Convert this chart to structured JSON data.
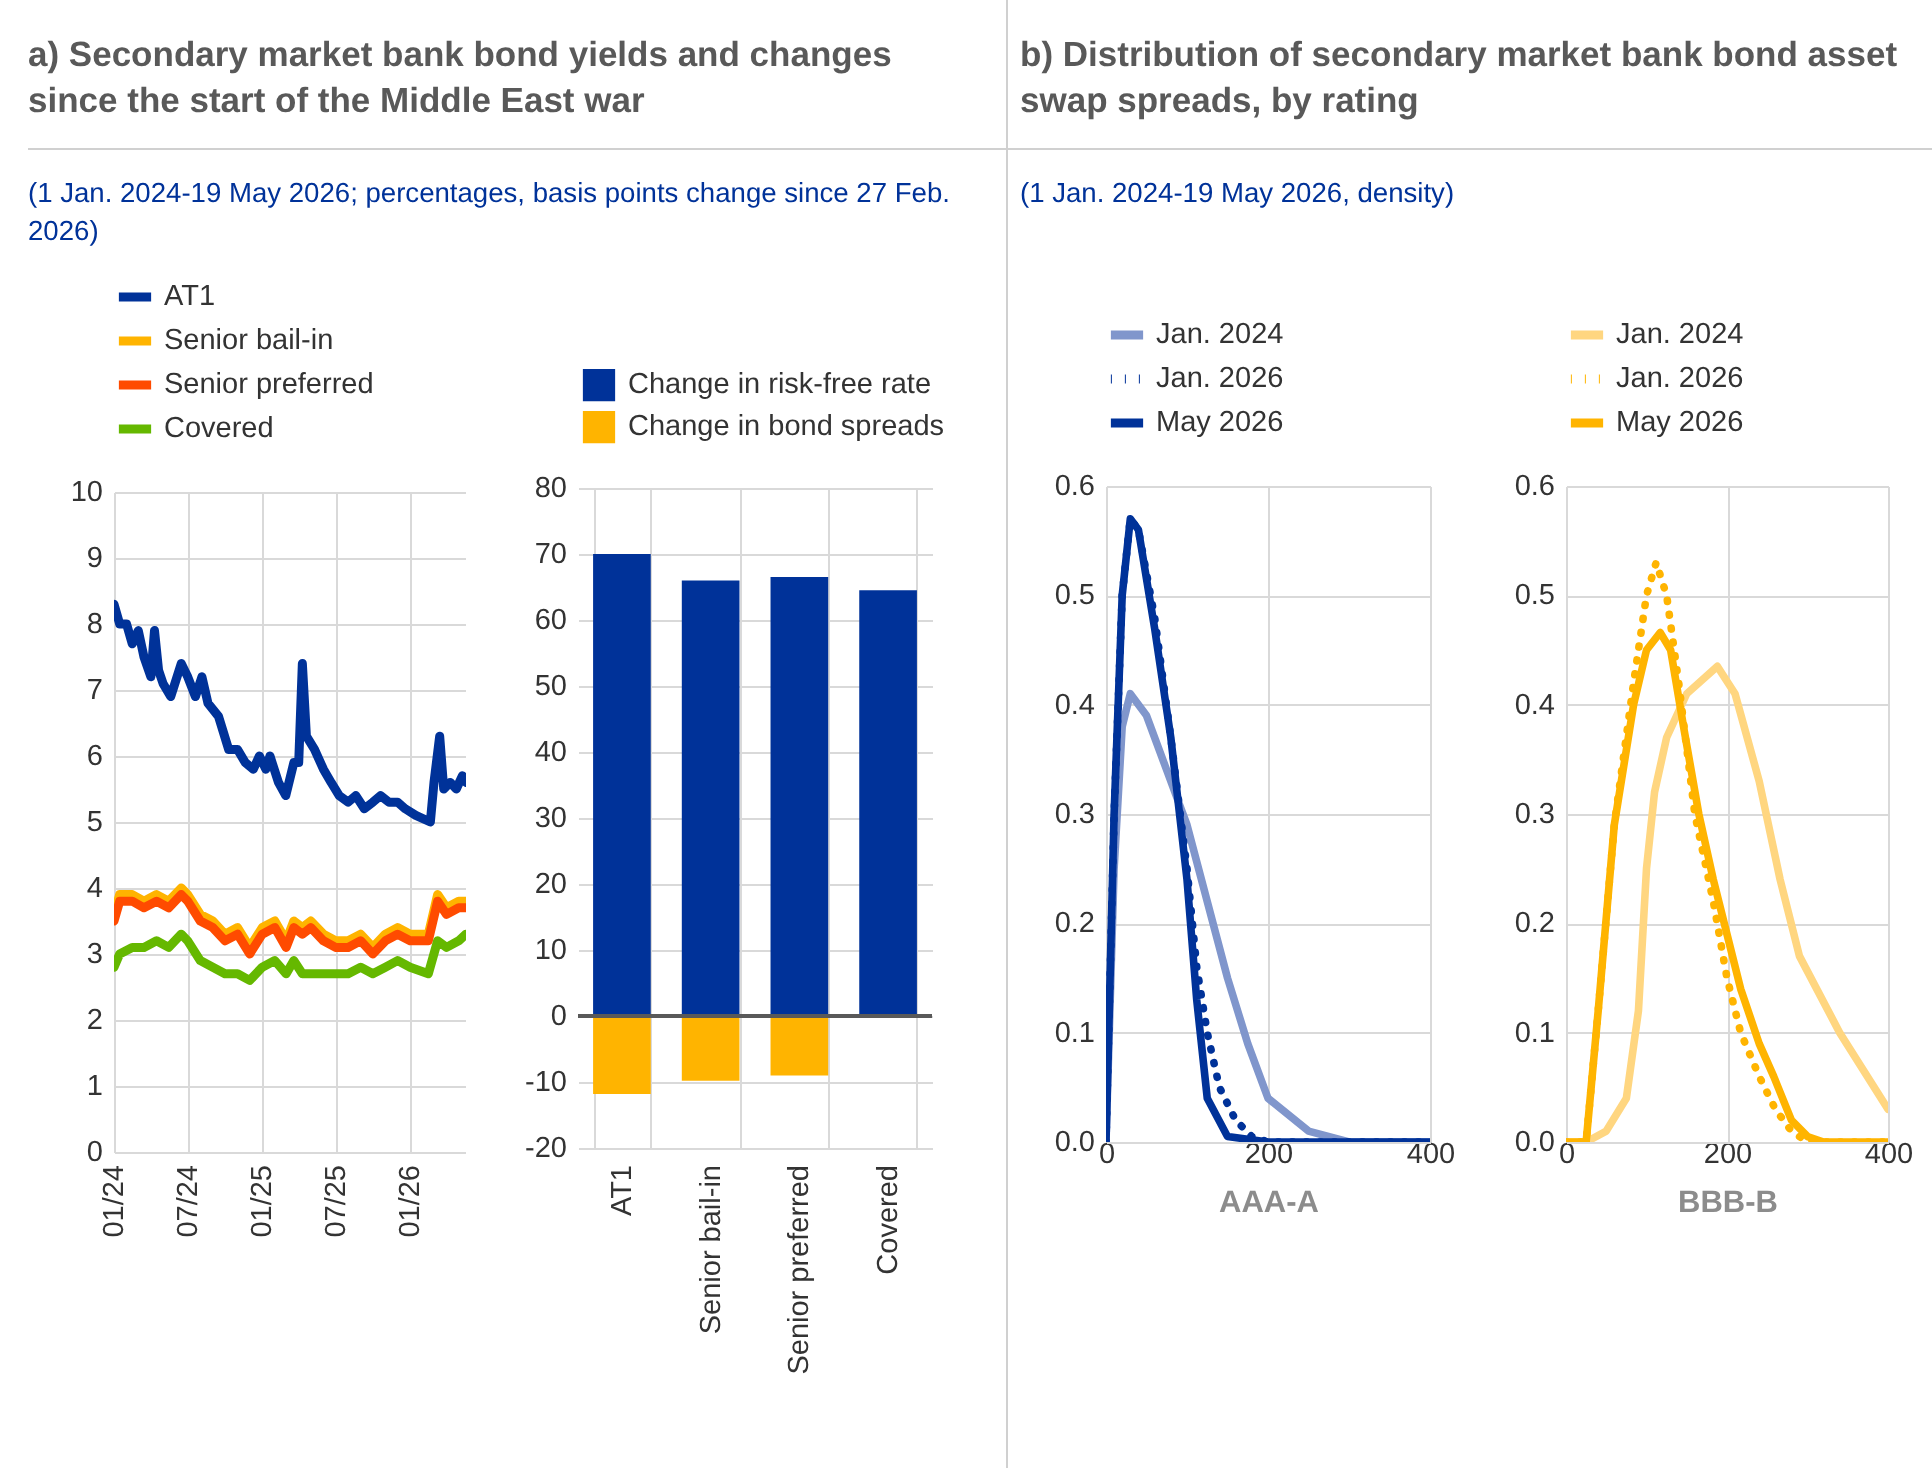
{
  "chart_data": [
    {
      "type": "line",
      "title": "a) Secondary market bank bond yields and changes since the start of the Middle East war",
      "subtitle": "(1 Jan. 2024-19 May 2026; percentages, basis points change since 27 Feb. 2026)",
      "xlim": [
        "2024-01-01",
        "2026-05-19"
      ],
      "xticks": [
        {
          "value": "2024-01-01",
          "label": "01/24"
        },
        {
          "value": "2024-07-01",
          "label": "07/24"
        },
        {
          "value": "2025-01-01",
          "label": "01/25"
        },
        {
          "value": "2025-07-01",
          "label": "07/25"
        },
        {
          "value": "2026-01-01",
          "label": "01/26"
        }
      ],
      "ylim": [
        0,
        10
      ],
      "yticks": [
        0,
        1,
        2,
        3,
        4,
        5,
        6,
        7,
        8,
        9,
        10
      ],
      "grid": true,
      "legend": "top",
      "series": [
        {
          "name": "AT1",
          "color": "#003299",
          "x": [
            "2024-01-01",
            "2024-01-15",
            "2024-02-01",
            "2024-02-15",
            "2024-03-01",
            "2024-03-15",
            "2024-04-01",
            "2024-04-10",
            "2024-04-20",
            "2024-05-01",
            "2024-05-20",
            "2024-06-15",
            "2024-07-01",
            "2024-07-20",
            "2024-08-05",
            "2024-08-20",
            "2024-09-15",
            "2024-10-10",
            "2024-11-01",
            "2024-11-20",
            "2024-12-10",
            "2024-12-25",
            "2025-01-10",
            "2025-01-20",
            "2025-02-10",
            "2025-02-28",
            "2025-03-20",
            "2025-04-01",
            "2025-04-10",
            "2025-04-20",
            "2025-05-10",
            "2025-06-01",
            "2025-06-20",
            "2025-07-10",
            "2025-08-01",
            "2025-08-20",
            "2025-09-10",
            "2025-10-01",
            "2025-10-20",
            "2025-11-10",
            "2025-12-01",
            "2025-12-20",
            "2026-01-15",
            "2026-02-20",
            "2026-03-01",
            "2026-03-15",
            "2026-03-25",
            "2026-04-10",
            "2026-04-25",
            "2026-05-10",
            "2026-05-19"
          ],
          "values": [
            8.3,
            8.0,
            8.0,
            7.7,
            7.9,
            7.5,
            7.2,
            7.9,
            7.3,
            7.1,
            6.9,
            7.4,
            7.2,
            6.9,
            7.2,
            6.8,
            6.6,
            6.1,
            6.1,
            5.9,
            5.8,
            6.0,
            5.8,
            6.0,
            5.6,
            5.4,
            5.9,
            5.9,
            7.4,
            6.3,
            6.1,
            5.8,
            5.6,
            5.4,
            5.3,
            5.4,
            5.2,
            5.3,
            5.4,
            5.3,
            5.3,
            5.2,
            5.1,
            5.0,
            5.6,
            6.3,
            5.5,
            5.6,
            5.5,
            5.7,
            5.6
          ]
        },
        {
          "name": "Senior bail-in",
          "color": "#ffb400",
          "x": [
            "2024-01-01",
            "2024-01-15",
            "2024-02-15",
            "2024-03-15",
            "2024-04-15",
            "2024-05-15",
            "2024-06-15",
            "2024-07-01",
            "2024-08-01",
            "2024-09-01",
            "2024-10-01",
            "2024-11-01",
            "2024-12-01",
            "2025-01-01",
            "2025-02-01",
            "2025-03-01",
            "2025-03-20",
            "2025-04-10",
            "2025-05-01",
            "2025-06-01",
            "2025-07-01",
            "2025-08-01",
            "2025-09-01",
            "2025-10-01",
            "2025-11-01",
            "2025-12-01",
            "2026-01-01",
            "2026-02-15",
            "2026-03-10",
            "2026-04-01",
            "2026-05-01",
            "2026-05-19"
          ],
          "values": [
            3.6,
            3.9,
            3.9,
            3.8,
            3.9,
            3.8,
            4.0,
            3.9,
            3.6,
            3.5,
            3.3,
            3.4,
            3.1,
            3.4,
            3.5,
            3.2,
            3.5,
            3.4,
            3.5,
            3.3,
            3.2,
            3.2,
            3.3,
            3.1,
            3.3,
            3.4,
            3.3,
            3.3,
            3.9,
            3.7,
            3.8,
            3.8
          ]
        },
        {
          "name": "Senior preferred",
          "color": "#ff4b00",
          "x": [
            "2024-01-01",
            "2024-01-15",
            "2024-02-15",
            "2024-03-15",
            "2024-04-15",
            "2024-05-15",
            "2024-06-15",
            "2024-07-01",
            "2024-08-01",
            "2024-09-01",
            "2024-10-01",
            "2024-11-01",
            "2024-12-01",
            "2025-01-01",
            "2025-02-01",
            "2025-03-01",
            "2025-03-20",
            "2025-04-10",
            "2025-05-01",
            "2025-06-01",
            "2025-07-01",
            "2025-08-01",
            "2025-09-01",
            "2025-10-01",
            "2025-11-01",
            "2025-12-01",
            "2026-01-01",
            "2026-02-15",
            "2026-03-10",
            "2026-04-01",
            "2026-05-01",
            "2026-05-19"
          ],
          "values": [
            3.5,
            3.8,
            3.8,
            3.7,
            3.8,
            3.7,
            3.9,
            3.8,
            3.5,
            3.4,
            3.2,
            3.3,
            3.0,
            3.3,
            3.4,
            3.1,
            3.4,
            3.3,
            3.4,
            3.2,
            3.1,
            3.1,
            3.2,
            3.0,
            3.2,
            3.3,
            3.2,
            3.2,
            3.8,
            3.6,
            3.7,
            3.7
          ]
        },
        {
          "name": "Covered",
          "color": "#65b800",
          "x": [
            "2024-01-01",
            "2024-01-15",
            "2024-02-15",
            "2024-03-15",
            "2024-04-15",
            "2024-05-15",
            "2024-06-15",
            "2024-07-01",
            "2024-08-01",
            "2024-09-01",
            "2024-10-01",
            "2024-11-01",
            "2024-12-01",
            "2025-01-01",
            "2025-02-01",
            "2025-03-01",
            "2025-03-20",
            "2025-04-10",
            "2025-05-01",
            "2025-06-01",
            "2025-07-01",
            "2025-08-01",
            "2025-09-01",
            "2025-10-01",
            "2025-11-01",
            "2025-12-01",
            "2026-01-01",
            "2026-02-15",
            "2026-03-10",
            "2026-04-01",
            "2026-05-01",
            "2026-05-19"
          ],
          "values": [
            2.8,
            3.0,
            3.1,
            3.1,
            3.2,
            3.1,
            3.3,
            3.2,
            2.9,
            2.8,
            2.7,
            2.7,
            2.6,
            2.8,
            2.9,
            2.7,
            2.9,
            2.7,
            2.7,
            2.7,
            2.7,
            2.7,
            2.8,
            2.7,
            2.8,
            2.9,
            2.8,
            2.7,
            3.2,
            3.1,
            3.2,
            3.3
          ]
        }
      ]
    },
    {
      "type": "bar",
      "categories": [
        "AT1",
        "Senior bail-in",
        "Senior preferred",
        "Covered"
      ],
      "stacked": true,
      "ylim": [
        -20,
        80
      ],
      "yticks": [
        -20,
        -10,
        0,
        10,
        20,
        30,
        40,
        50,
        60,
        70,
        80
      ],
      "grid": true,
      "legend": "top",
      "ref_lines": [
        {
          "axis": "y",
          "value": 0,
          "color": "#595959"
        }
      ],
      "series": [
        {
          "name": "Change in risk-free rate",
          "color": "#003299",
          "values": [
            70,
            66,
            66.5,
            64.5
          ]
        },
        {
          "name": "Change in bond spreads",
          "color": "#ffb400",
          "values": [
            -11.8,
            -9.8,
            -9,
            null
          ]
        }
      ]
    },
    {
      "type": "line",
      "title": "b) Distribution of secondary market bank bond asset swap spreads, by rating",
      "subtitle": "(1 Jan. 2024-19 May 2026, density)",
      "xlabel": "AAA-A",
      "xlim": [
        0,
        400
      ],
      "xticks": [
        0,
        200,
        400
      ],
      "ylim": [
        0,
        0.6
      ],
      "yticks": [
        {
          "value": 0,
          "label": "0.0"
        },
        0.1,
        0.2,
        0.3,
        0.4,
        0.5,
        0.6
      ],
      "grid": true,
      "legend": "top",
      "series": [
        {
          "name": "Jan. 2024",
          "color": "#8096cc",
          "line_style": "solid",
          "x": [
            0,
            10,
            20,
            30,
            50,
            75,
            100,
            125,
            150,
            175,
            200,
            250,
            300,
            400
          ],
          "values": [
            0,
            0.25,
            0.38,
            0.41,
            0.39,
            0.34,
            0.29,
            0.22,
            0.15,
            0.09,
            0.04,
            0.01,
            0,
            0
          ]
        },
        {
          "name": "Jan. 2026",
          "color": "#003299",
          "line_style": "dotted",
          "x": [
            0,
            10,
            20,
            30,
            40,
            60,
            80,
            100,
            112,
            125,
            140,
            160,
            180,
            200,
            400
          ],
          "values": [
            0,
            0.3,
            0.5,
            0.57,
            0.56,
            0.48,
            0.37,
            0.25,
            0.16,
            0.1,
            0.05,
            0.02,
            0.005,
            0,
            0
          ]
        },
        {
          "name": "May 2026",
          "color": "#003299",
          "line_style": "solid",
          "x": [
            0,
            10,
            20,
            30,
            40,
            60,
            80,
            100,
            112,
            125,
            150,
            200,
            400
          ],
          "values": [
            0,
            0.3,
            0.5,
            0.57,
            0.56,
            0.47,
            0.37,
            0.24,
            0.13,
            0.04,
            0.005,
            0,
            0
          ]
        }
      ]
    },
    {
      "type": "line",
      "xlabel": "BBB-B",
      "xlim": [
        0,
        400
      ],
      "xticks": [
        0,
        200,
        400
      ],
      "ylim": [
        0,
        0.6
      ],
      "yticks": [
        {
          "value": 0,
          "label": "0.0"
        },
        0.1,
        0.2,
        0.3,
        0.4,
        0.5,
        0.6
      ],
      "grid": true,
      "legend": "top",
      "series": [
        {
          "name": "Jan. 2024",
          "color": "#ffd680",
          "line_style": "solid",
          "x": [
            0,
            25,
            50,
            75,
            90,
            100,
            110,
            125,
            150,
            188,
            210,
            240,
            266,
            290,
            340,
            400
          ],
          "values": [
            0,
            0,
            0.01,
            0.04,
            0.12,
            0.25,
            0.32,
            0.37,
            0.41,
            0.435,
            0.41,
            0.33,
            0.24,
            0.17,
            0.1,
            0.03
          ]
        },
        {
          "name": "Jan. 2026",
          "color": "#ffb400",
          "line_style": "dotted",
          "x": [
            0,
            25,
            40,
            60,
            84,
            100,
            112,
            125,
            140,
            160,
            183,
            200,
            217,
            240,
            260,
            280,
            300,
            400
          ],
          "values": [
            0,
            0,
            0.12,
            0.29,
            0.42,
            0.5,
            0.53,
            0.5,
            0.42,
            0.3,
            0.22,
            0.15,
            0.1,
            0.06,
            0.03,
            0.01,
            0,
            0
          ]
        },
        {
          "name": "May 2026",
          "color": "#ffb400",
          "line_style": "solid",
          "x": [
            0,
            25,
            40,
            60,
            84,
            100,
            117,
            130,
            146,
            165,
            183,
            200,
            217,
            240,
            258,
            280,
            300,
            320,
            400
          ],
          "values": [
            0,
            0,
            0.12,
            0.29,
            0.4,
            0.45,
            0.466,
            0.45,
            0.38,
            0.3,
            0.24,
            0.19,
            0.14,
            0.09,
            0.06,
            0.02,
            0.005,
            0,
            0
          ]
        }
      ]
    }
  ]
}
